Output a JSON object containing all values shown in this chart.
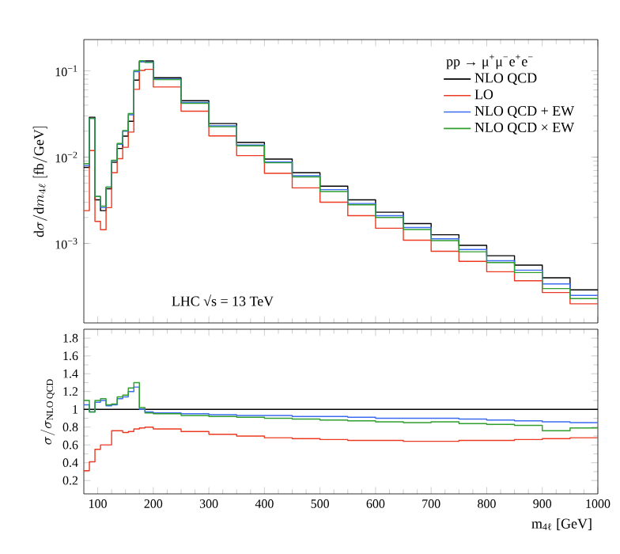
{
  "chart_data": [
    {
      "type": "step",
      "legend_title": "pp → μ$^{+}$μ$^{−}$e$^{+}$e$^{−}$",
      "ylabel": "\\mathrm{d}\\sigma/\\mathrm{d}m_{4\\ell}\\ [\\mathrm{fb/GeV}]",
      "annotations": [
        "LHC √s = 13 TeV"
      ],
      "log": "y",
      "legend": "top right",
      "tick_labels": "y",
      "xlim": [
        75,
        1000
      ],
      "ylim": [
        0.00012,
        0.23
      ],
      "xticks": [
        100,
        200,
        300,
        400,
        500,
        600,
        700,
        800,
        900,
        1000
      ],
      "yticks": [
        {
          "value": 0.001,
          "label": "10$^{−3}$"
        },
        {
          "value": 0.01,
          "label": "10$^{−2}$"
        },
        {
          "value": 0.1,
          "label": "10$^{−1}$"
        }
      ],
      "x": [
        75,
        85,
        95,
        105,
        115,
        125,
        135,
        145,
        155,
        165,
        175,
        185,
        200,
        250,
        300,
        350,
        400,
        450,
        500,
        550,
        600,
        650,
        700,
        750,
        800,
        850,
        900,
        950,
        1000
      ],
      "series": [
        {
          "name": "NLO QCD",
          "color": "#000000",
          "values": [
            0.0076,
            0.029,
            0.0032,
            0.0024,
            0.0043,
            0.0087,
            0.0126,
            0.0175,
            0.026,
            0.078,
            0.128,
            0.13,
            0.083,
            0.045,
            0.0245,
            0.0148,
            0.0095,
            0.0066,
            0.0046,
            0.0032,
            0.0023,
            0.0017,
            0.00126,
            0.00095,
            0.00072,
            0.00056,
            0.0004,
            0.00029,
            0.00029
          ]
        },
        {
          "name": "LO",
          "color": "#ec3a22",
          "values": [
            0.0024,
            0.0119,
            0.0018,
            0.00144,
            0.0026,
            0.0066,
            0.0096,
            0.013,
            0.0195,
            0.061,
            0.101,
            0.104,
            0.065,
            0.034,
            0.0176,
            0.0104,
            0.0065,
            0.0044,
            0.003,
            0.0021,
            0.0015,
            0.00109,
            0.00081,
            0.00062,
            0.00047,
            0.00037,
            0.00027,
            0.0002,
            0.0002
          ]
        },
        {
          "name": "NLO QCD + EW",
          "color": "#3b6cf0",
          "values": [
            0.008,
            0.0281,
            0.0035,
            0.0026,
            0.0045,
            0.0091,
            0.0141,
            0.02,
            0.031,
            0.0975,
            0.128,
            0.126,
            0.08,
            0.043,
            0.023,
            0.0138,
            0.0088,
            0.0061,
            0.0042,
            0.0029,
            0.0021,
            0.00153,
            0.00113,
            0.00085,
            0.00063,
            0.00049,
            0.00034,
            0.00025,
            0.00025
          ]
        },
        {
          "name": "NLO QCD × EW",
          "color": "#2f9e2f",
          "values": [
            0.0084,
            0.0281,
            0.0035,
            0.0027,
            0.0045,
            0.0092,
            0.0144,
            0.0203,
            0.032,
            0.101,
            0.131,
            0.125,
            0.079,
            0.042,
            0.0225,
            0.0135,
            0.0086,
            0.0059,
            0.004,
            0.0028,
            0.002,
            0.00145,
            0.00108,
            0.0008,
            0.0006,
            0.00046,
            0.0003,
            0.00023,
            0.00023
          ]
        }
      ]
    },
    {
      "type": "step",
      "xlabel": "m$_{4ℓ}$ [GeV]",
      "ylabel": "\\sigma/\\sigma_{\\mathrm{NLO\\,QCD}}",
      "xlim": [
        75,
        1000
      ],
      "ylim": [
        0.05,
        1.9
      ],
      "xticks": [
        100,
        200,
        300,
        400,
        500,
        600,
        700,
        800,
        900,
        1000
      ],
      "yticks": [
        0.2,
        0.4,
        0.6,
        0.8,
        1,
        1.2,
        1.4,
        1.6,
        1.8
      ],
      "x": [
        75,
        85,
        95,
        105,
        115,
        125,
        135,
        145,
        155,
        165,
        175,
        185,
        200,
        250,
        300,
        350,
        400,
        450,
        500,
        550,
        600,
        650,
        700,
        750,
        800,
        850,
        900,
        950,
        1000
      ],
      "series": [
        {
          "color": "#000000",
          "values": [
            1,
            1,
            1,
            1,
            1,
            1,
            1,
            1,
            1,
            1,
            1,
            1,
            1,
            1,
            1,
            1,
            1,
            1,
            1,
            1,
            1,
            1,
            1,
            1,
            1,
            1,
            1,
            1,
            1
          ]
        },
        {
          "color": "#ec3a22",
          "values": [
            0.31,
            0.41,
            0.55,
            0.6,
            0.6,
            0.76,
            0.76,
            0.74,
            0.75,
            0.78,
            0.79,
            0.8,
            0.78,
            0.75,
            0.72,
            0.7,
            0.68,
            0.67,
            0.66,
            0.65,
            0.65,
            0.64,
            0.64,
            0.65,
            0.65,
            0.66,
            0.67,
            0.68,
            0.68
          ]
        },
        {
          "color": "#3b6cf0",
          "values": [
            1.05,
            0.97,
            1.08,
            1.1,
            1.04,
            1.05,
            1.12,
            1.14,
            1.2,
            1.25,
            1.0,
            0.97,
            0.96,
            0.95,
            0.94,
            0.93,
            0.93,
            0.92,
            0.92,
            0.91,
            0.9,
            0.9,
            0.9,
            0.89,
            0.88,
            0.87,
            0.86,
            0.85,
            0.85
          ]
        },
        {
          "color": "#2f9e2f",
          "values": [
            1.1,
            0.97,
            1.1,
            1.12,
            1.05,
            1.06,
            1.14,
            1.16,
            1.24,
            1.3,
            1.02,
            0.96,
            0.95,
            0.93,
            0.92,
            0.91,
            0.9,
            0.89,
            0.88,
            0.87,
            0.86,
            0.85,
            0.86,
            0.84,
            0.83,
            0.82,
            0.76,
            0.79,
            0.79
          ]
        }
      ]
    }
  ]
}
